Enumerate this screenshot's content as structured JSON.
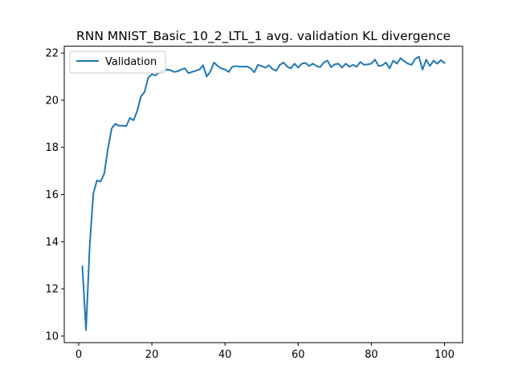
{
  "chart_data": {
    "type": "line",
    "title": "RNN MNIST_Basic_10_2_LTL_1 avg. validation KL divergence",
    "xlabel": "",
    "ylabel": "",
    "xlim": [
      -3.95,
      104.95
    ],
    "ylim": [
      9.72,
      22.29
    ],
    "x_ticks": [
      0,
      20,
      40,
      60,
      80,
      100
    ],
    "y_ticks": [
      10,
      12,
      14,
      16,
      18,
      20,
      22
    ],
    "grid": false,
    "legend_position": "top-left",
    "series": [
      {
        "name": "Validation",
        "color": "#1f77b4",
        "x": [
          1,
          2,
          3,
          4,
          5,
          6,
          7,
          8,
          9,
          10,
          11,
          12,
          13,
          14,
          15,
          16,
          17,
          18,
          19,
          20,
          21,
          22,
          23,
          24,
          25,
          26,
          27,
          28,
          29,
          30,
          31,
          32,
          33,
          34,
          35,
          36,
          37,
          38,
          39,
          40,
          41,
          42,
          43,
          44,
          45,
          46,
          47,
          48,
          49,
          50,
          51,
          52,
          53,
          54,
          55,
          56,
          57,
          58,
          59,
          60,
          61,
          62,
          63,
          64,
          65,
          66,
          67,
          68,
          69,
          70,
          71,
          72,
          73,
          74,
          75,
          76,
          77,
          78,
          79,
          80,
          81,
          82,
          83,
          84,
          85,
          86,
          87,
          88,
          89,
          90,
          91,
          92,
          93,
          94,
          95,
          96,
          97,
          98,
          99,
          100
        ],
        "y": [
          12.95,
          10.25,
          13.8,
          16.05,
          16.6,
          16.55,
          16.9,
          17.95,
          18.8,
          19.0,
          18.92,
          18.92,
          18.9,
          19.25,
          19.15,
          19.55,
          20.15,
          20.35,
          20.95,
          21.1,
          21.05,
          21.18,
          21.25,
          21.3,
          21.28,
          21.2,
          21.22,
          21.3,
          21.35,
          21.15,
          21.2,
          21.25,
          21.3,
          21.48,
          21.0,
          21.22,
          21.6,
          21.45,
          21.35,
          21.3,
          21.2,
          21.42,
          21.45,
          21.42,
          21.42,
          21.43,
          21.35,
          21.18,
          21.5,
          21.45,
          21.38,
          21.48,
          21.32,
          21.25,
          21.5,
          21.6,
          21.42,
          21.35,
          21.55,
          21.38,
          21.55,
          21.58,
          21.45,
          21.55,
          21.45,
          21.4,
          21.6,
          21.68,
          21.4,
          21.52,
          21.55,
          21.38,
          21.55,
          21.42,
          21.5,
          21.42,
          21.62,
          21.5,
          21.52,
          21.55,
          21.72,
          21.45,
          21.48,
          21.6,
          21.35,
          21.68,
          21.55,
          21.78,
          21.65,
          21.55,
          21.5,
          21.75,
          21.85,
          21.3,
          21.72,
          21.45,
          21.68,
          21.55,
          21.7,
          21.58
        ]
      }
    ]
  }
}
